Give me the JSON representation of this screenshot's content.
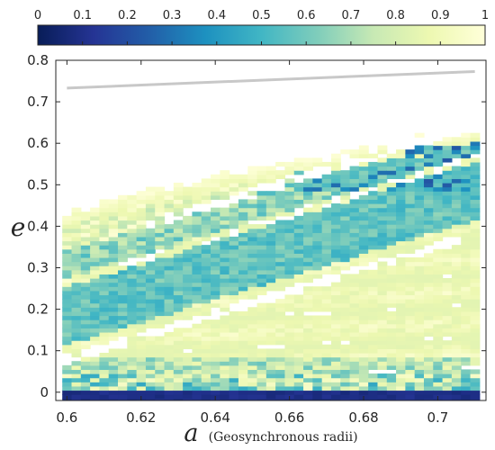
{
  "chart_data": {
    "type": "heatmap",
    "xlabel": "a",
    "xlabel_note": "(Geosynchronous radii)",
    "ylabel": "e",
    "xlim": [
      0.597,
      0.713
    ],
    "ylim": [
      -0.02,
      0.8
    ],
    "x_ticks": [
      0.6,
      0.62,
      0.64,
      0.66,
      0.68,
      0.7
    ],
    "x_tick_labels": [
      "0.6",
      "0.62",
      "0.64",
      "0.66",
      "0.68",
      "0.7"
    ],
    "y_ticks": [
      0,
      0.1,
      0.2,
      0.3,
      0.4,
      0.5,
      0.6,
      0.7,
      0.8
    ],
    "y_tick_labels": [
      "0",
      "0.1",
      "0.2",
      "0.3",
      "0.4",
      "0.5",
      "0.6",
      "0.7",
      "0.8"
    ],
    "colorbar": {
      "range": [
        0,
        1
      ],
      "ticks": [
        0,
        0.1,
        0.2,
        0.3,
        0.4,
        0.5,
        0.6,
        0.7,
        0.8,
        0.9,
        1
      ],
      "tick_labels": [
        "0",
        "0.1",
        "0.2",
        "0.3",
        "0.4",
        "0.5",
        "0.6",
        "0.7",
        "0.8",
        "0.9",
        "1"
      ],
      "colormap": [
        "#081d58",
        "#253494",
        "#225ea8",
        "#1d91c0",
        "#41b6c4",
        "#7fcdbb",
        "#c7e9b4",
        "#edf8b1",
        "#ffffd9"
      ]
    },
    "grid": {
      "x_start": 0.6,
      "x_step": 0.0025,
      "x_count": 45,
      "y_start": -0.02,
      "y_step": 0.01,
      "y_count": 69
    },
    "reference_curve": {
      "color": "#c8c8c8",
      "x": [
        0.6,
        0.71
      ],
      "y": [
        0.733,
        0.773
      ]
    },
    "description": "Fraction values over (a, e) grid; high-e boundary rises from about e=0.43 at a=0.6 to e=0.63 at a=0.71. Bottom row near e=0 is dark (0-0.2). Low-value blue bands around e~0.15-0.35 at small a, extending diagonally to e~0.45-0.6 at large a; white gaps are missing cells."
  }
}
